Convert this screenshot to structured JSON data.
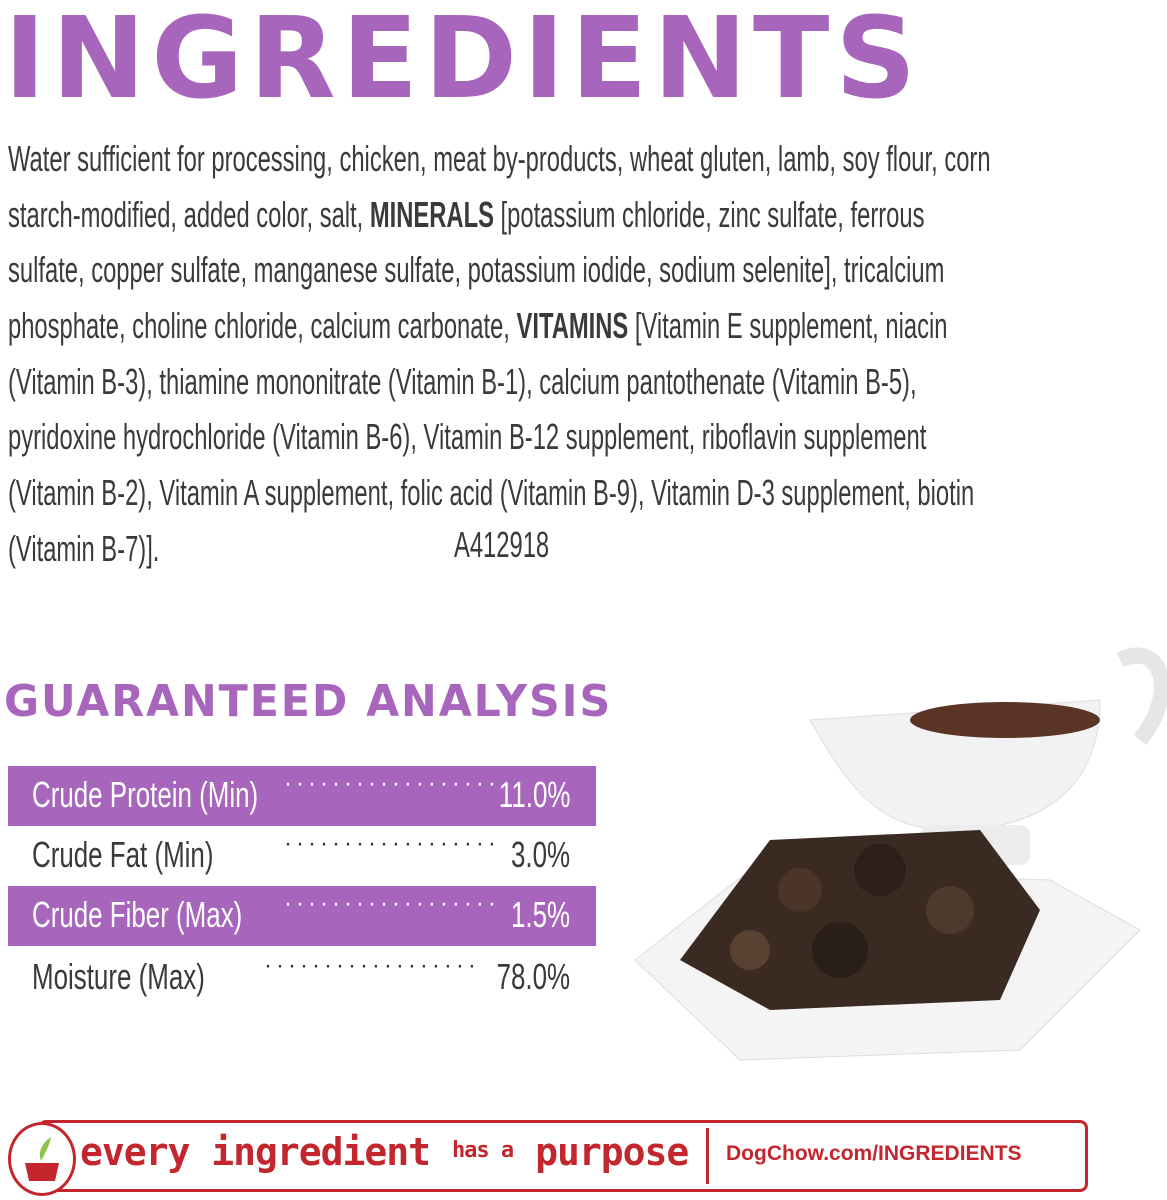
{
  "title": "INGREDIENTS",
  "ingredients_lines": [
    {
      "pre": "Water sufficient for processing, chicken, meat by-products, wheat gluten, lamb, soy flour, corn",
      "bold": "",
      "post": ""
    },
    {
      "pre": "starch-modified, added color, salt, ",
      "bold": "MINERALS",
      "post": " [potassium chloride, zinc sulfate, ferrous"
    },
    {
      "pre": "sulfate, copper sulfate, manganese sulfate, potassium iodide, sodium selenite], tricalcium",
      "bold": "",
      "post": ""
    },
    {
      "pre": "phosphate, choline chloride, calcium carbonate, ",
      "bold": "VITAMINS",
      "post": " [Vitamin E supplement, niacin"
    },
    {
      "pre": "(Vitamin B-3), thiamine mononitrate (Vitamin B-1), calcium pantothenate (Vitamin B-5),",
      "bold": "",
      "post": ""
    },
    {
      "pre": "pyridoxine hydrochloride (Vitamin B-6), Vitamin B-12 supplement, riboflavin supplement",
      "bold": "",
      "post": ""
    },
    {
      "pre": "(Vitamin B-2), Vitamin A supplement, folic acid (Vitamin B-9), Vitamin D-3 supplement, biotin",
      "bold": "",
      "post": ""
    },
    {
      "pre": "(Vitamin B-7)].",
      "bold": "",
      "post": ""
    }
  ],
  "code": "A412918",
  "analysis": {
    "title": "GUARANTEED ANALYSIS",
    "rows": [
      {
        "label": "Crude  Protein  (Min)",
        "dots": "··················",
        "value": "11.0%"
      },
      {
        "label": "Crude   Fat   (Min)",
        "dots": "··················",
        "value": "3.0%"
      },
      {
        "label": "Crude   Fiber   (Max)",
        "dots": "··················",
        "value": "1.5%"
      },
      {
        "label": "Moisture    (Max)",
        "dots": "··················",
        "value": "78.0%"
      }
    ]
  },
  "banner": {
    "slogan_1": "every ingredient",
    "slogan_2": "has a",
    "slogan_3": "purpose",
    "url": "DogChow.com/INGREDIENTS"
  },
  "colors": {
    "accent": "#a765bb",
    "banner": "#c4262e",
    "text": "#3a3a3a"
  }
}
